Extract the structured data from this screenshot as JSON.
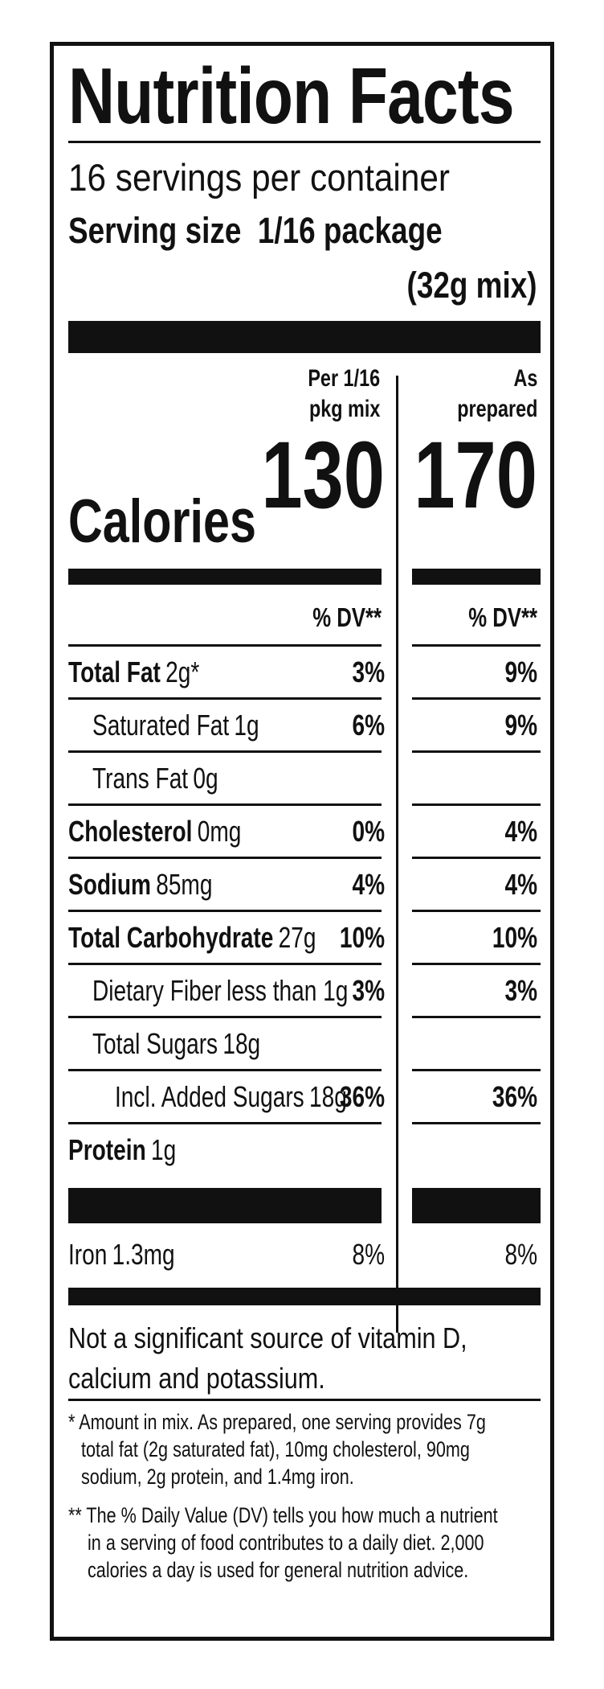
{
  "title": "Nutrition Facts",
  "servings_per_container": "16 servings per container",
  "serving_size_label": "Serving size",
  "serving_size_value": "1/16 package",
  "serving_size_grams": "(32g mix)",
  "columns": {
    "col1_line1": "Per 1/16",
    "col1_line2": "pkg mix",
    "col2_line1": "As",
    "col2_line2": "prepared"
  },
  "calories": {
    "label": "Calories",
    "value1": "130",
    "value2": "170"
  },
  "dv_header": {
    "col1": "% DV**",
    "col2": "% DV**"
  },
  "nutrients": [
    {
      "name": "Total Fat",
      "amount": "2g*",
      "dv1": "3%",
      "dv2": "9%"
    },
    {
      "name": "Saturated Fat",
      "amount": "1g",
      "dv1": "6%",
      "dv2": "9%"
    },
    {
      "name": "Trans Fat",
      "amount": "0g",
      "dv1": "",
      "dv2": ""
    },
    {
      "name": "Cholesterol",
      "amount": "0mg",
      "dv1": "0%",
      "dv2": "4%"
    },
    {
      "name": "Sodium",
      "amount": "85mg",
      "dv1": "4%",
      "dv2": "4%"
    },
    {
      "name": "Total Carbohydrate",
      "amount": "27g",
      "dv1": "10%",
      "dv2": "10%"
    },
    {
      "name": "Dietary Fiber",
      "amount": "less than 1g",
      "dv1": "3%",
      "dv2": "3%"
    },
    {
      "name": "Total Sugars",
      "amount": "18g",
      "dv1": "",
      "dv2": ""
    },
    {
      "name": "Incl. Added Sugars",
      "amount": "18g",
      "dv1": "36%",
      "dv2": "36%"
    },
    {
      "name": "Protein",
      "amount": "1g",
      "dv1": "",
      "dv2": ""
    }
  ],
  "vitamins": [
    {
      "name": "Iron",
      "amount": "1.3mg",
      "dv1": "8%",
      "dv2": "8%"
    }
  ],
  "not_significant": {
    "line1": "Not a significant source of vitamin D,",
    "line2": "calcium and potassium."
  },
  "footnote1": {
    "line1": "* Amount in mix. As prepared, one serving provides 7g",
    "line2": "total fat (2g saturated fat), 10mg cholesterol, 90mg",
    "line3": "sodium, 2g protein, and 1.4mg iron."
  },
  "footnote2": {
    "line1": "** The % Daily Value (DV) tells you how much a nutrient",
    "line2": "in a serving of food contributes to a daily diet. 2,000",
    "line3": "calories a day is used for general nutrition advice."
  }
}
